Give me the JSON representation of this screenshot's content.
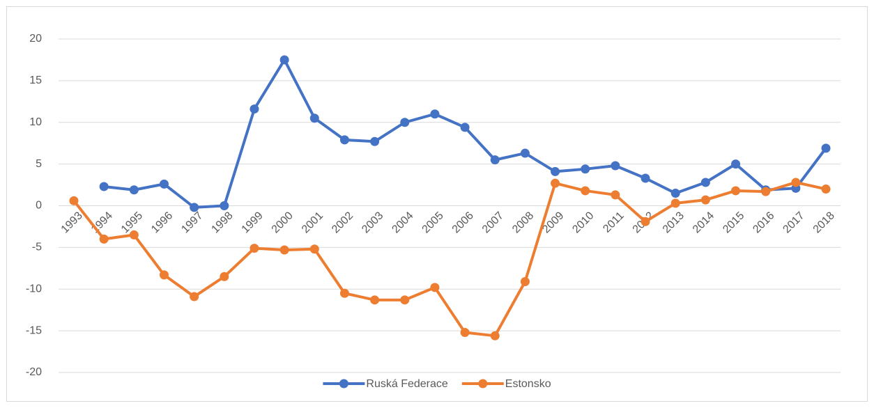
{
  "chart_data": {
    "type": "line",
    "categories": [
      "1993",
      "1994",
      "1995",
      "1996",
      "1997",
      "1998",
      "1999",
      "2000",
      "2001",
      "2002",
      "2003",
      "2004",
      "2005",
      "2006",
      "2007",
      "2008",
      "2009",
      "2010",
      "2011",
      "2012",
      "2013",
      "2014",
      "2015",
      "2016",
      "2017",
      "2018"
    ],
    "series": [
      {
        "name": "Ruská Federace",
        "color": "#4472c4",
        "values": [
          null,
          2.3,
          1.9,
          2.6,
          -0.2,
          0.0,
          11.6,
          17.5,
          10.5,
          7.9,
          7.7,
          10.0,
          11.0,
          9.4,
          5.5,
          6.3,
          4.1,
          4.4,
          4.8,
          3.3,
          1.5,
          2.8,
          5.0,
          1.9,
          2.1,
          6.9
        ]
      },
      {
        "name": "Estonsko",
        "color": "#ed7d31",
        "values": [
          0.6,
          -4.0,
          -3.5,
          -8.3,
          -10.9,
          -8.5,
          -5.1,
          -5.3,
          -5.2,
          -10.5,
          -11.3,
          -11.3,
          -9.8,
          -15.2,
          -15.6,
          -9.1,
          2.7,
          1.8,
          1.3,
          -1.9,
          0.3,
          0.7,
          1.8,
          1.7,
          2.8,
          2.0
        ]
      }
    ],
    "ylim": [
      -20,
      20
    ],
    "yticks": [
      -20,
      -15,
      -10,
      -5,
      0,
      5,
      10,
      15,
      20
    ],
    "grid": true,
    "legend": "bottom"
  }
}
